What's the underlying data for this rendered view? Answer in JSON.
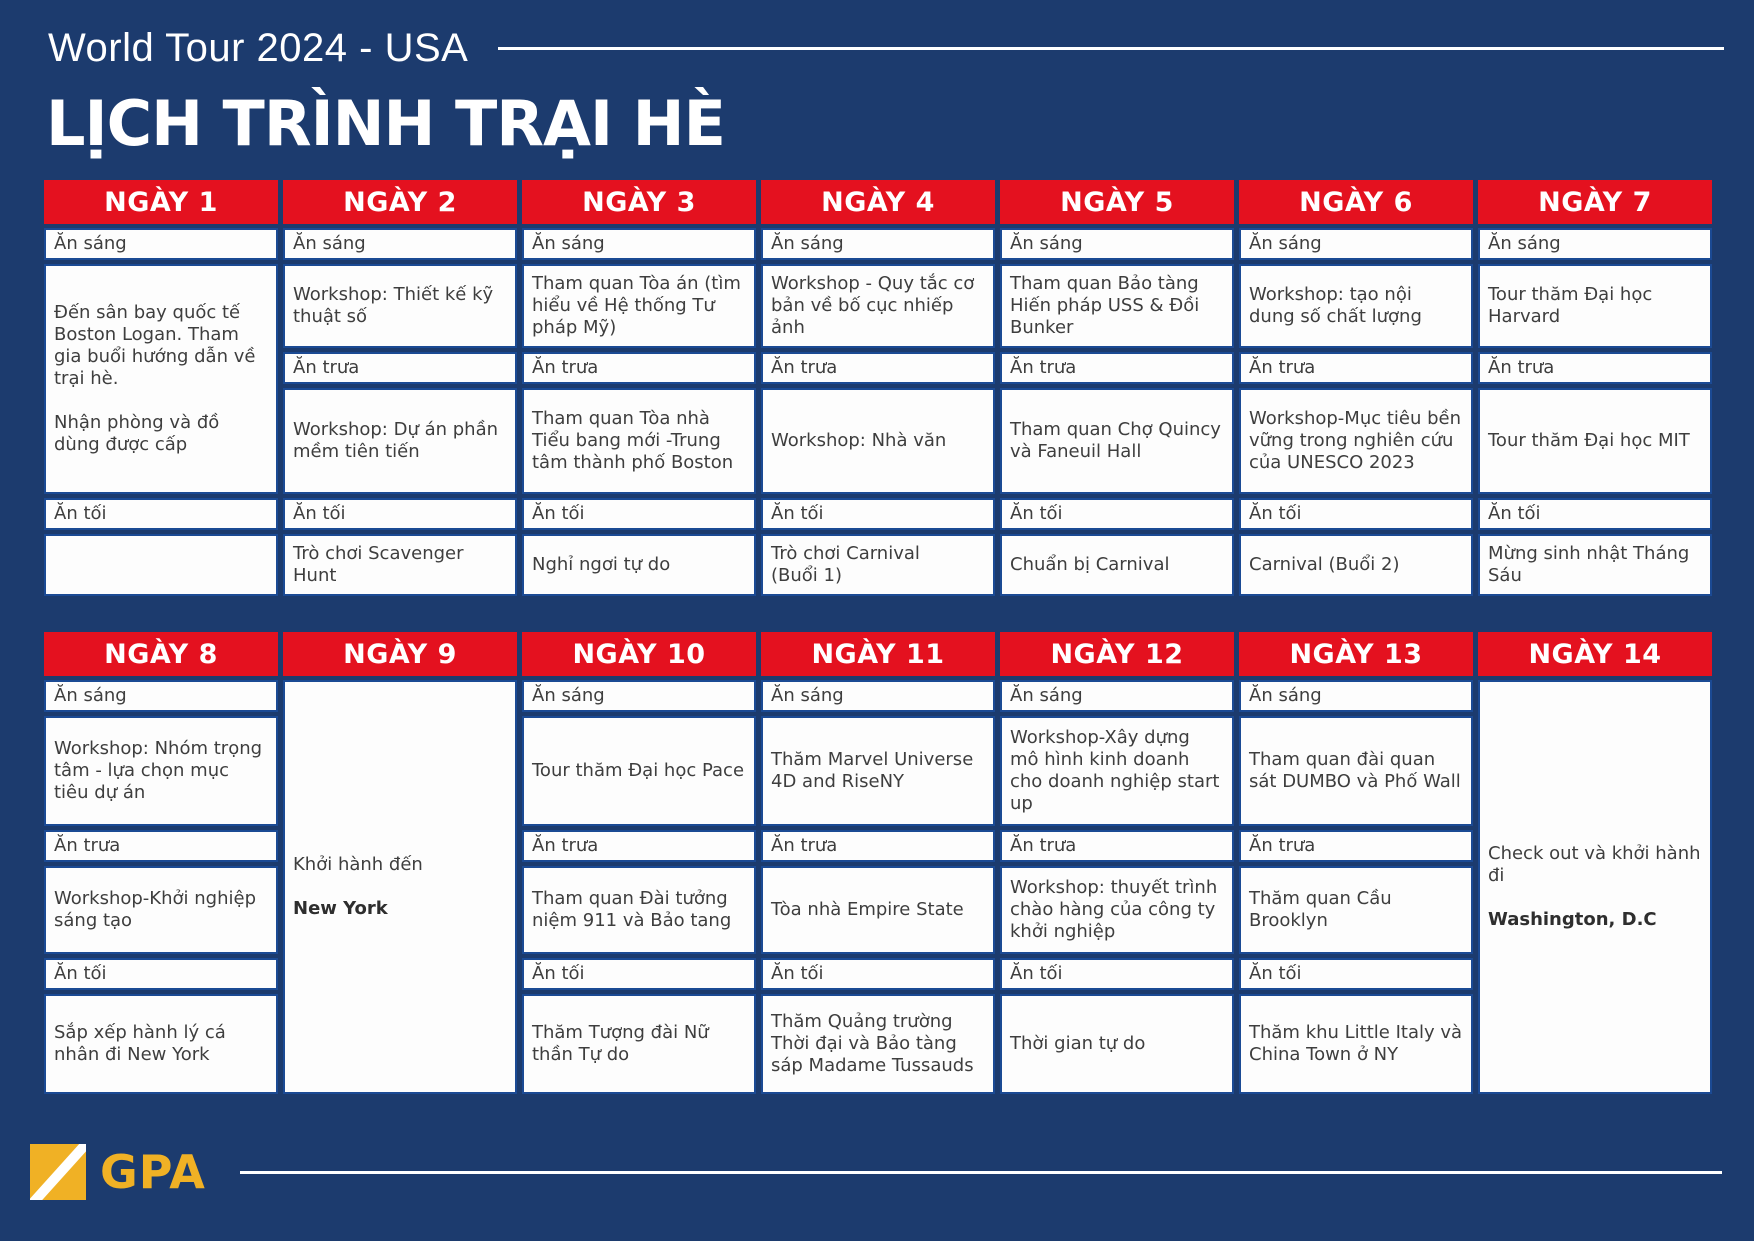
{
  "header": {
    "subtitle": "World Tour 2024 - USA",
    "title": "LỊCH TRÌNH TRẠI HÈ"
  },
  "meals": {
    "breakfast": "Ăn sáng",
    "lunch": "Ăn trưa",
    "dinner": "Ăn tối"
  },
  "colors": {
    "background_navy": "#1c3b6e",
    "header_red": "#e4111f",
    "cell_border_blue": "#1b4a94",
    "cell_background": "#fdfdfd",
    "cell_text": "#3e3e3e",
    "logo_gold": "#f0b125",
    "rule_white": "#ffffff"
  },
  "week1": {
    "days": [
      {
        "label": "NGÀY 1",
        "merged": "Đến sân bay quốc tế Boston Logan. Tham gia buổi hướng dẫn về trại hè.\n\nNhận phòng và đồ dùng được cấp",
        "evening": ""
      },
      {
        "label": "NGÀY 2",
        "morning": "Workshop: Thiết kế kỹ thuật số",
        "afternoon": "Workshop: Dự án phần mềm tiên tiến",
        "evening": "Trò chơi Scavenger Hunt"
      },
      {
        "label": "NGÀY 3",
        "morning": "Tham quan Tòa án (tìm hiểu về Hệ thống Tư pháp Mỹ)",
        "afternoon": "Tham quan Tòa nhà Tiểu bang mới -Trung tâm thành phố Boston",
        "evening": "Nghỉ ngơi tự do"
      },
      {
        "label": "NGÀY 4",
        "morning": "Workshop - Quy tắc cơ bản về bố cục nhiếp ảnh",
        "afternoon": "Workshop: Nhà văn",
        "evening": "Trò chơi Carnival\n(Buổi 1)"
      },
      {
        "label": "NGÀY 5",
        "morning": "Tham quan Bảo tàng Hiến pháp USS & Đồi Bunker",
        "afternoon": "Tham quan Chợ Quincy và Faneuil Hall",
        "evening": "Chuẩn bị Carnival"
      },
      {
        "label": "NGÀY 6",
        "morning": "Workshop: tạo nội dung số chất lượng",
        "afternoon": "Workshop-Mục tiêu bền vững trong nghiên cứu của UNESCO 2023",
        "evening": "Carnival (Buổi 2)"
      },
      {
        "label": "NGÀY 7",
        "morning": "Tour thăm Đại học Harvard",
        "afternoon": "Tour thăm Đại học MIT",
        "evening": "Mừng sinh nhật Tháng Sáu"
      }
    ]
  },
  "week2": {
    "days": [
      {
        "label": "NGÀY 8",
        "morning": "Workshop: Nhóm trọng tâm - lựa chọn mục tiêu dự án",
        "afternoon": "Workshop-Khởi nghiệp sáng tạo",
        "evening": "Sắp xếp hành lý cá nhân đi New York"
      },
      {
        "label": "NGÀY 9",
        "full_normal": "Khởi hành đến",
        "full_bold": "New York"
      },
      {
        "label": "NGÀY 10",
        "morning": "Tour thăm Đại học Pace",
        "afternoon": "Tham quan Đài tưởng niệm 911 và Bảo tang",
        "evening": "Thăm Tượng đài Nữ thần Tự do"
      },
      {
        "label": "NGÀY 11",
        "morning": "Thăm Marvel Universe 4D and RiseNY",
        "afternoon": "Tòa nhà Empire State",
        "evening": "Thăm Quảng trường Thời đại và Bảo tàng sáp Madame Tussauds"
      },
      {
        "label": "NGÀY 12",
        "morning": "Workshop-Xây dựng mô hình kinh doanh cho doanh nghiệp start up",
        "afternoon": "Workshop: thuyết trình chào hàng của công ty khởi nghiệp",
        "evening": "Thời gian tự do"
      },
      {
        "label": "NGÀY 13",
        "morning": "Tham quan đài quan sát DUMBO và Phố Wall",
        "afternoon": "Thăm quan Cầu Brooklyn",
        "evening": "Thăm khu Little Italy và China Town ở NY"
      },
      {
        "label": "NGÀY 14",
        "full_normal": "Check out và khởi hành đi",
        "full_bold": "Washington, D.C"
      }
    ]
  },
  "footer": {
    "logo_text": "GPA"
  }
}
